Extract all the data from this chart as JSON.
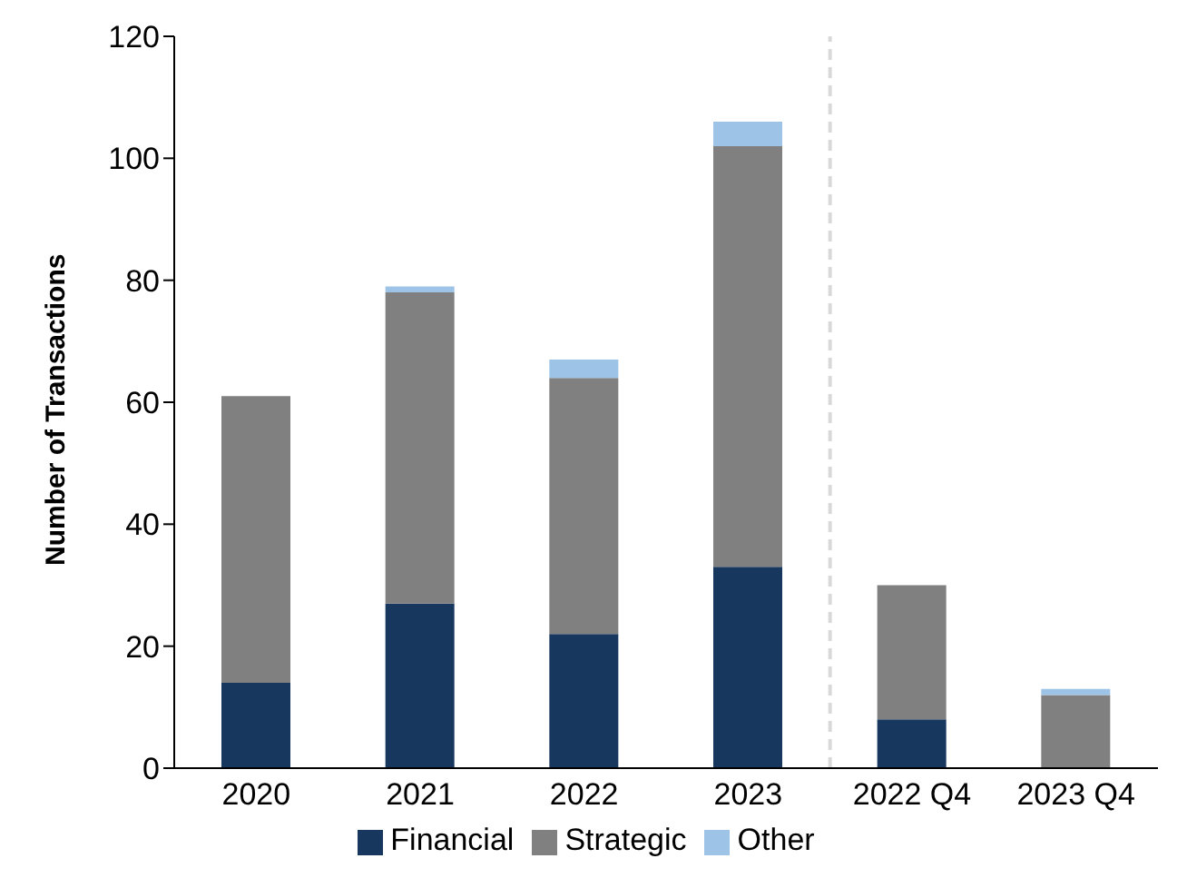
{
  "chart_data": {
    "type": "bar",
    "stacked": true,
    "ylabel": "Number of Transactions",
    "categories": [
      "2020",
      "2021",
      "2022",
      "2023",
      "2022 Q4",
      "2023 Q4"
    ],
    "series": [
      {
        "name": "Financial",
        "color": "#17375e",
        "values": [
          14,
          27,
          22,
          33,
          8,
          0
        ]
      },
      {
        "name": "Strategic",
        "color": "#808080",
        "values": [
          47,
          51,
          42,
          69,
          22,
          12
        ]
      },
      {
        "name": "Other",
        "color": "#9dc3e6",
        "values": [
          0,
          1,
          3,
          4,
          0,
          1
        ]
      }
    ],
    "ylim": [
      0,
      120
    ],
    "yticks": [
      0,
      20,
      40,
      60,
      80,
      100,
      120
    ],
    "grid": false,
    "legend": "bottom"
  }
}
